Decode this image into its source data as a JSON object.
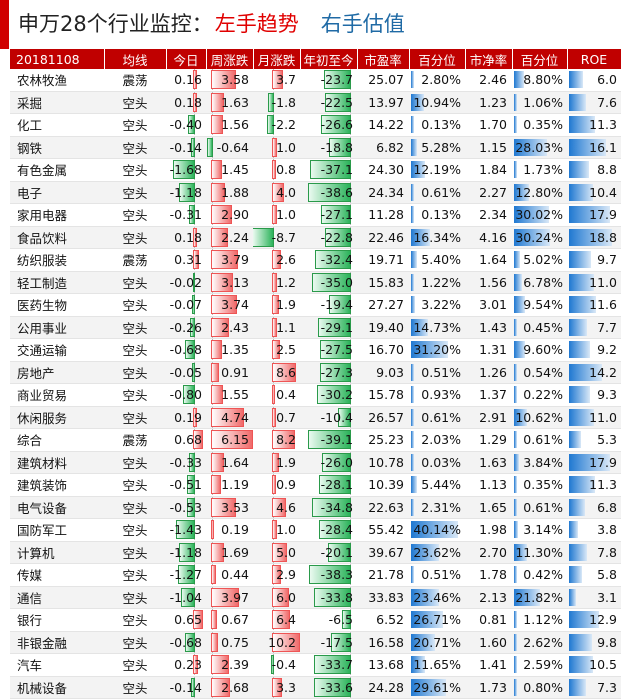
{
  "title": {
    "main": "申万28个行业监控：",
    "left": "左手趋势",
    "right": "右手估值"
  },
  "headers": {
    "date": "20181108",
    "trend": "均线",
    "today": "今日",
    "week": "周涨跌",
    "month": "月涨跌",
    "ytd": "年初至今",
    "pe": "市盈率",
    "pe_pct": "百分位",
    "pb": "市净率",
    "pb_pct": "百分位",
    "roe": "ROE"
  },
  "colors": {
    "header_bg": "#c00000",
    "up": "#f06a6a",
    "down": "#2bb35a",
    "pct_bar": "#1f78d1",
    "title_red": "#e00000",
    "title_blue": "#1f6aa5"
  },
  "rows": [
    {
      "name": "农林牧渔",
      "trend": "震荡",
      "today": "0.16",
      "week": "3.58",
      "month": "3.7",
      "ytd": "-23.7",
      "pe": "25.07",
      "pe_pct": "2.80%",
      "pb": "2.46",
      "pb_pct": "8.80%",
      "roe": "6.0"
    },
    {
      "name": "采掘",
      "trend": "空头",
      "today": "0.18",
      "week": "1.63",
      "month": "-1.8",
      "ytd": "-22.5",
      "pe": "13.97",
      "pe_pct": "10.94%",
      "pb": "1.23",
      "pb_pct": "1.06%",
      "roe": "7.6"
    },
    {
      "name": "化工",
      "trend": "空头",
      "today": "-0.40",
      "week": "1.56",
      "month": "-2.2",
      "ytd": "-26.6",
      "pe": "14.22",
      "pe_pct": "0.13%",
      "pb": "1.70",
      "pb_pct": "0.35%",
      "roe": "11.3"
    },
    {
      "name": "钢铁",
      "trend": "空头",
      "today": "-0.14",
      "week": "-0.64",
      "month": "1.0",
      "ytd": "-18.8",
      "pe": "6.82",
      "pe_pct": "5.28%",
      "pb": "1.15",
      "pb_pct": "28.03%",
      "roe": "16.1"
    },
    {
      "name": "有色金属",
      "trend": "空头",
      "today": "-1.68",
      "week": "1.45",
      "month": "0.8",
      "ytd": "-37.1",
      "pe": "24.30",
      "pe_pct": "12.19%",
      "pb": "1.84",
      "pb_pct": "1.73%",
      "roe": "8.8"
    },
    {
      "name": "电子",
      "trend": "空头",
      "today": "-1.18",
      "week": "1.88",
      "month": "4.0",
      "ytd": "-38.6",
      "pe": "24.34",
      "pe_pct": "0.61%",
      "pb": "2.27",
      "pb_pct": "12.80%",
      "roe": "10.4"
    },
    {
      "name": "家用电器",
      "trend": "空头",
      "today": "-0.31",
      "week": "2.90",
      "month": "1.0",
      "ytd": "-27.1",
      "pe": "11.28",
      "pe_pct": "0.13%",
      "pb": "2.34",
      "pb_pct": "30.02%",
      "roe": "17.9"
    },
    {
      "name": "食品饮料",
      "trend": "空头",
      "today": "0.18",
      "week": "2.24",
      "month": "-8.7",
      "ytd": "-22.8",
      "pe": "22.46",
      "pe_pct": "16.34%",
      "pb": "4.16",
      "pb_pct": "30.24%",
      "roe": "18.8"
    },
    {
      "name": "纺织服装",
      "trend": "震荡",
      "today": "0.31",
      "week": "3.79",
      "month": "2.6",
      "ytd": "-32.4",
      "pe": "19.71",
      "pe_pct": "5.40%",
      "pb": "1.64",
      "pb_pct": "5.02%",
      "roe": "9.7"
    },
    {
      "name": "轻工制造",
      "trend": "空头",
      "today": "-0.02",
      "week": "3.13",
      "month": "1.2",
      "ytd": "-35.0",
      "pe": "15.83",
      "pe_pct": "1.22%",
      "pb": "1.56",
      "pb_pct": "6.78%",
      "roe": "11.0"
    },
    {
      "name": "医药生物",
      "trend": "空头",
      "today": "-0.07",
      "week": "3.74",
      "month": "1.9",
      "ytd": "-19.4",
      "pe": "27.27",
      "pe_pct": "3.22%",
      "pb": "3.01",
      "pb_pct": "9.54%",
      "roe": "11.6"
    },
    {
      "name": "公用事业",
      "trend": "空头",
      "today": "-0.26",
      "week": "2.43",
      "month": "1.1",
      "ytd": "-29.1",
      "pe": "19.40",
      "pe_pct": "14.73%",
      "pb": "1.43",
      "pb_pct": "0.45%",
      "roe": "7.7"
    },
    {
      "name": "交通运输",
      "trend": "空头",
      "today": "-0.68",
      "week": "1.35",
      "month": "2.5",
      "ytd": "-27.5",
      "pe": "16.70",
      "pe_pct": "31.20%",
      "pb": "1.31",
      "pb_pct": "9.60%",
      "roe": "9.2"
    },
    {
      "name": "房地产",
      "trend": "空头",
      "today": "-0.05",
      "week": "0.91",
      "month": "8.6",
      "ytd": "-27.3",
      "pe": "9.03",
      "pe_pct": "0.51%",
      "pb": "1.26",
      "pb_pct": "0.54%",
      "roe": "14.2"
    },
    {
      "name": "商业贸易",
      "trend": "空头",
      "today": "-0.80",
      "week": "1.55",
      "month": "0.4",
      "ytd": "-30.2",
      "pe": "15.78",
      "pe_pct": "0.93%",
      "pb": "1.37",
      "pb_pct": "0.22%",
      "roe": "9.3"
    },
    {
      "name": "休闲服务",
      "trend": "空头",
      "today": "0.19",
      "week": "4.74",
      "month": "0.7",
      "ytd": "-10.4",
      "pe": "26.57",
      "pe_pct": "0.61%",
      "pb": "2.91",
      "pb_pct": "10.62%",
      "roe": "11.0"
    },
    {
      "name": "综合",
      "trend": "震荡",
      "today": "0.68",
      "week": "6.15",
      "month": "8.2",
      "ytd": "-39.1",
      "pe": "25.23",
      "pe_pct": "2.03%",
      "pb": "1.29",
      "pb_pct": "0.61%",
      "roe": "5.3"
    },
    {
      "name": "建筑材料",
      "trend": "空头",
      "today": "-0.33",
      "week": "1.64",
      "month": "1.9",
      "ytd": "-26.0",
      "pe": "10.78",
      "pe_pct": "0.03%",
      "pb": "1.63",
      "pb_pct": "3.84%",
      "roe": "17.9"
    },
    {
      "name": "建筑装饰",
      "trend": "空头",
      "today": "-0.51",
      "week": "1.19",
      "month": "0.9",
      "ytd": "-28.1",
      "pe": "10.39",
      "pe_pct": "5.44%",
      "pb": "1.13",
      "pb_pct": "0.35%",
      "roe": "11.3"
    },
    {
      "name": "电气设备",
      "trend": "空头",
      "today": "-0.53",
      "week": "3.53",
      "month": "4.6",
      "ytd": "-34.8",
      "pe": "22.63",
      "pe_pct": "2.31%",
      "pb": "1.65",
      "pb_pct": "0.61%",
      "roe": "6.8"
    },
    {
      "name": "国防军工",
      "trend": "空头",
      "today": "-1.43",
      "week": "0.19",
      "month": "1.0",
      "ytd": "-28.4",
      "pe": "55.42",
      "pe_pct": "40.14%",
      "pb": "1.98",
      "pb_pct": "3.14%",
      "roe": "3.8"
    },
    {
      "name": "计算机",
      "trend": "空头",
      "today": "-1.18",
      "week": "1.69",
      "month": "5.0",
      "ytd": "-20.1",
      "pe": "39.67",
      "pe_pct": "23.62%",
      "pb": "2.70",
      "pb_pct": "11.30%",
      "roe": "7.8"
    },
    {
      "name": "传媒",
      "trend": "空头",
      "today": "-1.27",
      "week": "0.44",
      "month": "2.9",
      "ytd": "-38.3",
      "pe": "21.78",
      "pe_pct": "0.51%",
      "pb": "1.78",
      "pb_pct": "0.42%",
      "roe": "5.8"
    },
    {
      "name": "通信",
      "trend": "空头",
      "today": "-1.04",
      "week": "3.97",
      "month": "6.0",
      "ytd": "-33.8",
      "pe": "33.83",
      "pe_pct": "23.46%",
      "pb": "2.13",
      "pb_pct": "21.82%",
      "roe": "3.1"
    },
    {
      "name": "银行",
      "trend": "空头",
      "today": "0.65",
      "week": "0.67",
      "month": "6.4",
      "ytd": "-6.5",
      "pe": "6.52",
      "pe_pct": "26.71%",
      "pb": "0.81",
      "pb_pct": "1.12%",
      "roe": "12.9"
    },
    {
      "name": "非银金融",
      "trend": "空头",
      "today": "-0.68",
      "week": "0.75",
      "month": "10.2",
      "ytd": "-17.5",
      "pe": "16.58",
      "pe_pct": "20.71%",
      "pb": "1.60",
      "pb_pct": "2.62%",
      "roe": "9.8"
    },
    {
      "name": "汽车",
      "trend": "空头",
      "today": "0.23",
      "week": "2.39",
      "month": "-0.4",
      "ytd": "-33.7",
      "pe": "13.68",
      "pe_pct": "11.65%",
      "pb": "1.41",
      "pb_pct": "2.59%",
      "roe": "10.5"
    },
    {
      "name": "机械设备",
      "trend": "空头",
      "today": "-0.14",
      "week": "2.68",
      "month": "3.3",
      "ytd": "-33.6",
      "pe": "24.28",
      "pe_pct": "29.61%",
      "pb": "1.73",
      "pb_pct": "0.80%",
      "roe": "7.3"
    }
  ]
}
